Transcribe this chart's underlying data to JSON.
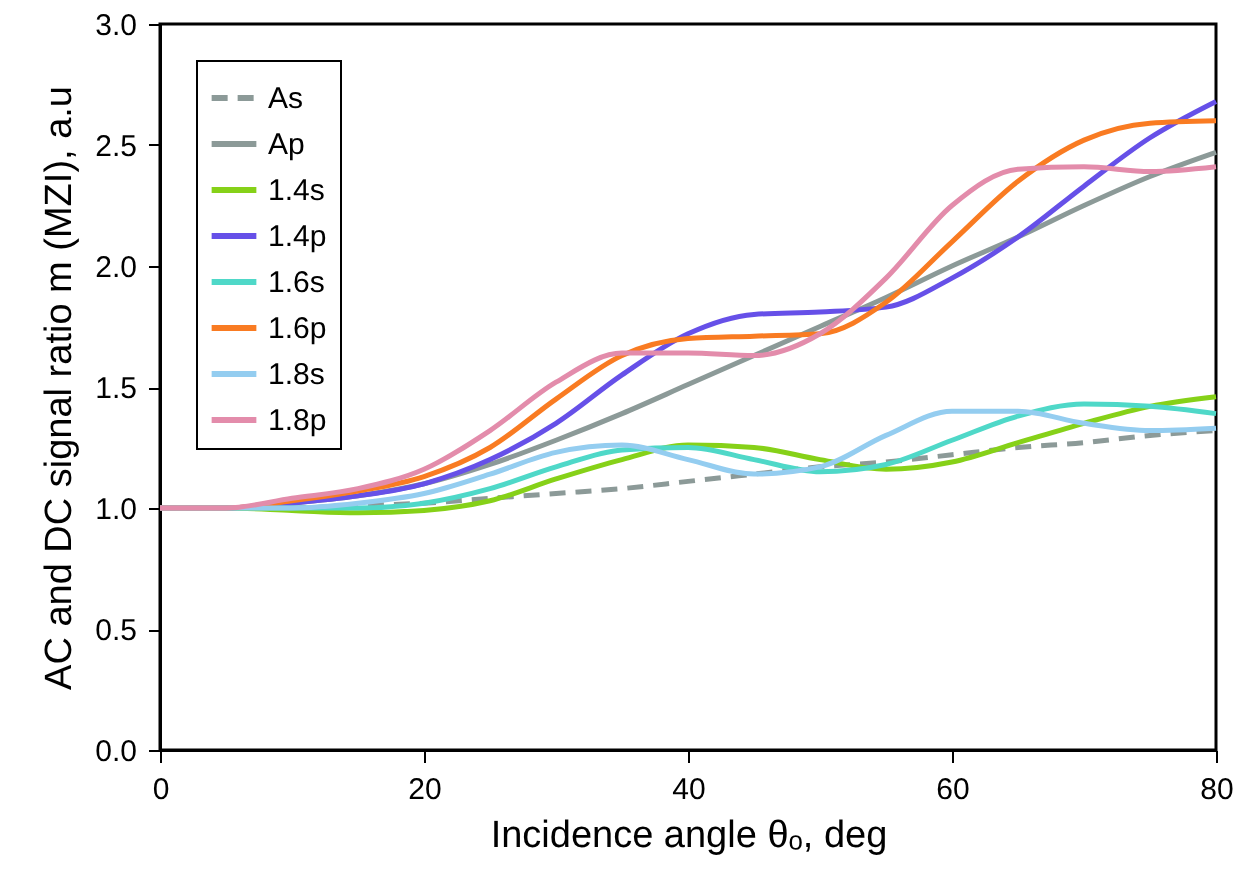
{
  "chart_data": {
    "type": "line",
    "xlabel": "Incidence angle θₒ, deg",
    "ylabel": "AC and DC signal ratio m (MZI), a.u",
    "x": [
      0,
      5,
      10,
      15,
      20,
      25,
      30,
      35,
      40,
      45,
      50,
      55,
      60,
      65,
      70,
      75,
      80
    ],
    "xlim": [
      0,
      80
    ],
    "xticks": [
      0,
      20,
      40,
      60,
      80
    ],
    "ylim": [
      0,
      3
    ],
    "yticks": [
      {
        "value": 0,
        "label": "0.0"
      },
      {
        "value": 0.5,
        "label": "0.5"
      },
      {
        "value": 1,
        "label": "1.0"
      },
      {
        "value": 1.5,
        "label": "1.5"
      },
      {
        "value": 2,
        "label": "2.0"
      },
      {
        "value": 2.5,
        "label": "2.5"
      },
      {
        "value": 3,
        "label": "3.0"
      }
    ],
    "grid": false,
    "legend": "top left",
    "marker": "none",
    "series": [
      {
        "name": "As",
        "color": "#8c9a98",
        "line_style": "dashed",
        "values": [
          1,
          1,
          1,
          1.01,
          1.02,
          1.04,
          1.06,
          1.08,
          1.11,
          1.14,
          1.17,
          1.19,
          1.22,
          1.25,
          1.27,
          1.3,
          1.32
        ]
      },
      {
        "name": "Ap",
        "color": "#8c9a98",
        "line_style": "solid",
        "values": [
          1,
          1,
          1.02,
          1.05,
          1.1,
          1.18,
          1.28,
          1.39,
          1.51,
          1.63,
          1.75,
          1.87,
          2,
          2.12,
          2.25,
          2.37,
          2.47
        ]
      },
      {
        "name": "1.4s",
        "color": "#86d118",
        "line_style": "solid",
        "values": [
          1,
          1,
          0.99,
          0.98,
          0.99,
          1.03,
          1.12,
          1.2,
          1.26,
          1.25,
          1.2,
          1.16,
          1.19,
          1.27,
          1.35,
          1.42,
          1.46
        ]
      },
      {
        "name": "1.4p",
        "color": "#6650e8",
        "line_style": "solid",
        "values": [
          1,
          1,
          1.02,
          1.05,
          1.1,
          1.2,
          1.35,
          1.55,
          1.72,
          1.8,
          1.81,
          1.83,
          1.95,
          2.12,
          2.33,
          2.53,
          2.68
        ]
      },
      {
        "name": "1.6s",
        "color": "#4fd8c8",
        "line_style": "solid",
        "values": [
          1,
          1,
          1,
          1,
          1.02,
          1.08,
          1.17,
          1.24,
          1.25,
          1.2,
          1.15,
          1.18,
          1.28,
          1.38,
          1.43,
          1.42,
          1.39
        ]
      },
      {
        "name": "1.6p",
        "color": "#f97b22",
        "line_style": "solid",
        "values": [
          1,
          1,
          1.03,
          1.07,
          1.13,
          1.25,
          1.45,
          1.63,
          1.7,
          1.71,
          1.72,
          1.85,
          2.1,
          2.35,
          2.52,
          2.59,
          2.6
        ]
      },
      {
        "name": "1.8s",
        "color": "#94cdf0",
        "line_style": "solid",
        "values": [
          1,
          1,
          1,
          1.02,
          1.06,
          1.14,
          1.23,
          1.26,
          1.2,
          1.14,
          1.17,
          1.3,
          1.4,
          1.4,
          1.35,
          1.32,
          1.33
        ]
      },
      {
        "name": "1.8p",
        "color": "#e38cab",
        "line_style": "solid",
        "values": [
          1,
          1,
          1.04,
          1.08,
          1.16,
          1.32,
          1.52,
          1.64,
          1.64,
          1.63,
          1.72,
          1.95,
          2.25,
          2.4,
          2.41,
          2.39,
          2.41
        ]
      }
    ]
  }
}
